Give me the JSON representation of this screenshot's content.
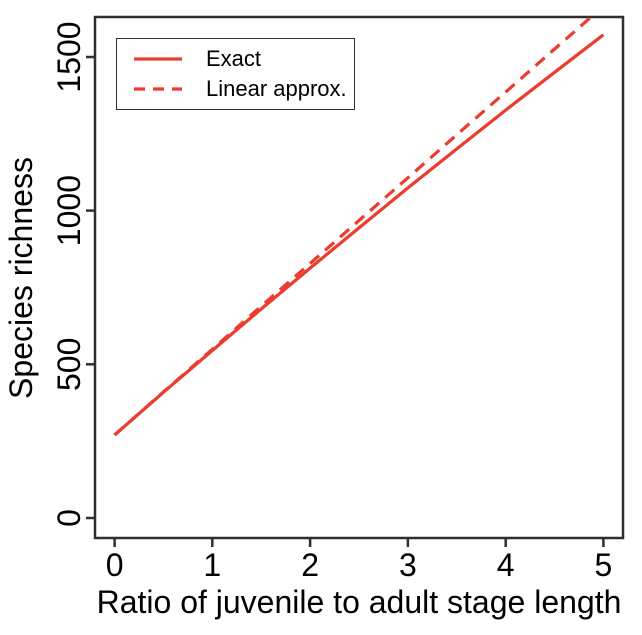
{
  "chart_data": {
    "type": "line",
    "title": "",
    "xlabel": "Ratio of juvenile to adult stage length",
    "ylabel": "Species richness",
    "x_ticks": [
      0,
      1,
      2,
      3,
      4,
      5
    ],
    "y_ticks": [
      0,
      500,
      1000,
      1500
    ],
    "xlim": [
      -0.2,
      5.2
    ],
    "ylim": [
      -65,
      1630
    ],
    "grid": false,
    "legend_position": "top-left-inside",
    "axis_color": "#2f2f2f",
    "text_color": "#000000",
    "x": [
      0,
      0.5,
      1,
      1.5,
      2,
      2.5,
      3,
      3.5,
      4,
      4.5,
      5
    ],
    "series": [
      {
        "name": "Exact",
        "line_style": "solid",
        "color": "#eb3c2d",
        "values": [
          270,
          409,
          545,
          680,
          813,
          944,
          1074,
          1201,
          1327,
          1450,
          1572
        ]
      },
      {
        "name": "Linear approx.",
        "line_style": "dashed",
        "color": "#eb3c2d",
        "values": [
          270,
          410,
          549,
          689,
          828,
          968,
          1107,
          1247,
          1386,
          1526,
          1665
        ]
      }
    ]
  },
  "legend": {
    "items": [
      {
        "label": "Exact",
        "style": "solid"
      },
      {
        "label": "Linear approx.",
        "style": "dashed"
      }
    ]
  }
}
